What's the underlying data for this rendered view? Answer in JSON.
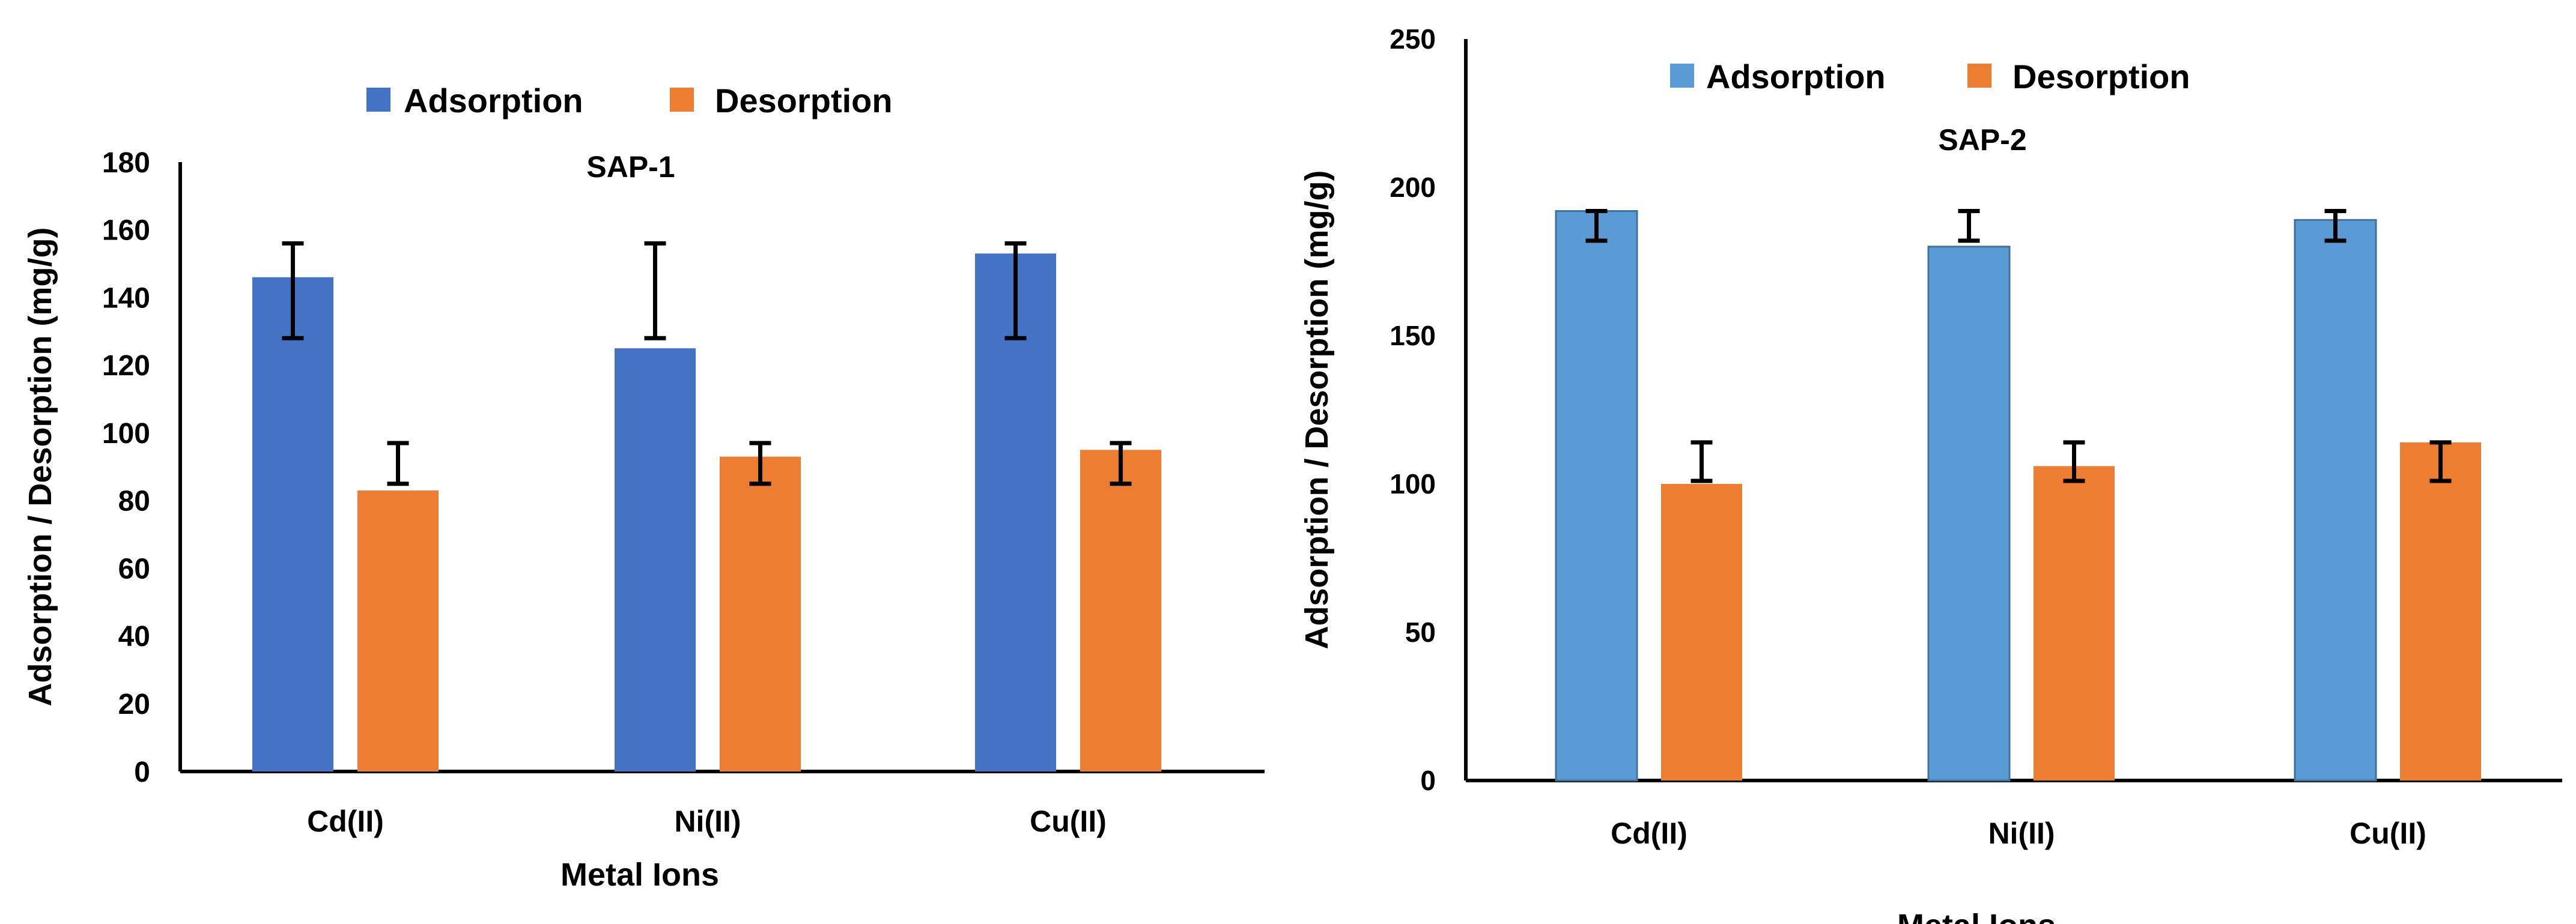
{
  "chart_data": [
    {
      "type": "bar",
      "title": "SAP-1",
      "xlabel": "Metal Ions",
      "ylabel": "Adsorption / Desorption (mg/g)",
      "categories": [
        "Cd(II)",
        "Ni(II)",
        "Cu(II)"
      ],
      "ylim": [
        0,
        180
      ],
      "yticks": [
        0,
        20,
        40,
        60,
        80,
        100,
        120,
        140,
        160,
        180
      ],
      "series": [
        {
          "name": "Adsorption",
          "color": "#4472C4",
          "values": [
            146,
            125,
            153
          ],
          "err_low": [
            128,
            128,
            128
          ],
          "err_high": [
            156,
            156,
            156
          ]
        },
        {
          "name": "Desorption",
          "color": "#ED7D31",
          "values": [
            83,
            93,
            95
          ],
          "err_low": [
            85,
            85,
            85
          ],
          "err_high": [
            97,
            97,
            97
          ]
        }
      ],
      "legend": "top-center"
    },
    {
      "type": "bar",
      "title": "SAP-2",
      "xlabel": "Metal Ions",
      "ylabel": "Adsorption / Desorption (mg/g)",
      "categories": [
        "Cd(II)",
        "Ni(II)",
        "Cu(II)"
      ],
      "ylim": [
        0,
        250
      ],
      "yticks": [
        0,
        50,
        100,
        150,
        200,
        250
      ],
      "series": [
        {
          "name": "Adsorption",
          "color": "#5B9BD5",
          "values": [
            192,
            180,
            189
          ],
          "err_low": [
            182,
            182,
            182
          ],
          "err_high": [
            192,
            192,
            192
          ]
        },
        {
          "name": "Desorption",
          "color": "#ED7D31",
          "values": [
            100,
            106,
            114
          ],
          "err_low": [
            101,
            101,
            101
          ],
          "err_high": [
            114,
            114,
            114
          ]
        }
      ],
      "legend": "top-center"
    }
  ]
}
